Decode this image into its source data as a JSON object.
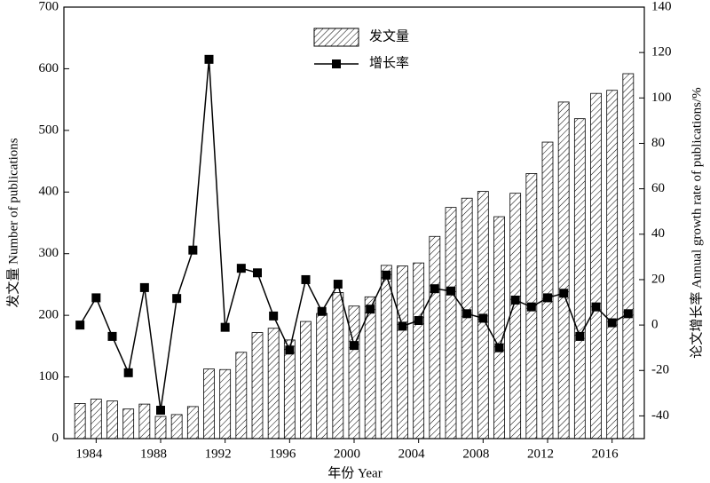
{
  "chart_data": {
    "type": "bar",
    "xlabel": "年份 Year",
    "ylabel": "发文量 Number of publications",
    "y2label": "论文增长率 Annual growth rate of publications/%",
    "x": [
      1983,
      1984,
      1985,
      1986,
      1987,
      1988,
      1989,
      1990,
      1991,
      1992,
      1993,
      1994,
      1995,
      1996,
      1997,
      1998,
      1999,
      2000,
      2001,
      2002,
      2003,
      2004,
      2005,
      2006,
      2007,
      2008,
      2009,
      2010,
      2011,
      2012,
      2013,
      2014,
      2015,
      2016,
      2017
    ],
    "series": [
      {
        "name": "发文量",
        "type": "bar",
        "color": "#000000",
        "values": [
          57,
          64,
          61,
          48,
          56,
          36,
          39,
          52,
          113,
          112,
          140,
          172,
          179,
          160,
          190,
          203,
          237,
          215,
          230,
          281,
          280,
          285,
          328,
          375,
          390,
          401,
          360,
          398,
          430,
          481,
          546,
          519,
          560,
          565,
          592
        ]
      },
      {
        "name": "增长率",
        "type": "line",
        "axis": "y2",
        "color": "#000000",
        "values": [
          0,
          12,
          -5,
          -21,
          16.5,
          -37.5,
          11.7,
          33,
          117,
          -1,
          25,
          23,
          4,
          -11,
          20,
          6,
          18,
          -9,
          7,
          22,
          -0.5,
          2,
          16,
          15,
          5,
          3,
          -10,
          11,
          8,
          12,
          14,
          -5,
          8,
          1,
          5
        ]
      }
    ],
    "xlim": [
      1982,
      2018
    ],
    "xticks": [
      1984,
      1988,
      1992,
      1996,
      2000,
      2004,
      2008,
      2012,
      2016
    ],
    "ylim": [
      0,
      700
    ],
    "yticks": [
      0,
      100,
      200,
      300,
      400,
      500,
      600,
      700
    ],
    "y2lim": [
      -50,
      140
    ],
    "y2ticks": [
      -40,
      -20,
      0,
      20,
      40,
      60,
      80,
      100,
      120,
      140
    ],
    "legend": "top"
  }
}
